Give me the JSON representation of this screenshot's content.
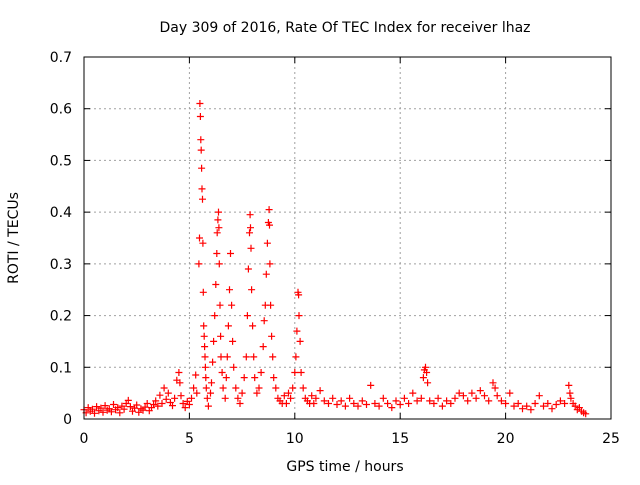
{
  "chart_data": {
    "type": "scatter",
    "title": "Day 309 of 2016, Rate Of TEC Index for receiver lhaz",
    "xlabel": "GPS time / hours",
    "ylabel": "ROTI / TECUs",
    "xlim": [
      0,
      25
    ],
    "ylim": [
      0,
      0.7
    ],
    "xticks": [
      0,
      5,
      10,
      15,
      20,
      25
    ],
    "xtick_labels": [
      "0",
      "5",
      "10",
      "15",
      "20",
      "25"
    ],
    "yticks": [
      0,
      0.1,
      0.2,
      0.3,
      0.4,
      0.5,
      0.6,
      0.7
    ],
    "ytick_labels": [
      "0",
      "0.1",
      "0.2",
      "0.3",
      "0.4",
      "0.5",
      "0.6",
      "0.7"
    ],
    "grid": true,
    "marker": "plus",
    "color": "#ff0000",
    "series": [
      {
        "points": [
          [
            0.0,
            0.018
          ],
          [
            0.1,
            0.012
          ],
          [
            0.2,
            0.022
          ],
          [
            0.3,
            0.015
          ],
          [
            0.4,
            0.019
          ],
          [
            0.5,
            0.011
          ],
          [
            0.6,
            0.024
          ],
          [
            0.7,
            0.016
          ],
          [
            0.8,
            0.021
          ],
          [
            0.9,
            0.013
          ],
          [
            1.0,
            0.026
          ],
          [
            1.1,
            0.017
          ],
          [
            1.2,
            0.02
          ],
          [
            1.3,
            0.014
          ],
          [
            1.4,
            0.028
          ],
          [
            1.5,
            0.018
          ],
          [
            1.6,
            0.022
          ],
          [
            1.7,
            0.012
          ],
          [
            1.8,
            0.025
          ],
          [
            1.9,
            0.019
          ],
          [
            2.0,
            0.03
          ],
          [
            2.1,
            0.036
          ],
          [
            2.2,
            0.024
          ],
          [
            2.3,
            0.015
          ],
          [
            2.4,
            0.021
          ],
          [
            2.5,
            0.027
          ],
          [
            2.6,
            0.013
          ],
          [
            2.7,
            0.02
          ],
          [
            2.8,
            0.017
          ],
          [
            2.9,
            0.023
          ],
          [
            3.0,
            0.03
          ],
          [
            3.1,
            0.016
          ],
          [
            3.2,
            0.022
          ],
          [
            3.3,
            0.028
          ],
          [
            3.4,
            0.035
          ],
          [
            3.5,
            0.025
          ],
          [
            3.6,
            0.046
          ],
          [
            3.7,
            0.03
          ],
          [
            3.8,
            0.06
          ],
          [
            3.9,
            0.038
          ],
          [
            4.0,
            0.05
          ],
          [
            4.1,
            0.032
          ],
          [
            4.2,
            0.026
          ],
          [
            4.3,
            0.04
          ],
          [
            4.4,
            0.075
          ],
          [
            4.5,
            0.09
          ],
          [
            4.55,
            0.07
          ],
          [
            4.6,
            0.045
          ],
          [
            4.7,
            0.03
          ],
          [
            4.8,
            0.022
          ],
          [
            4.9,
            0.034
          ],
          [
            5.0,
            0.028
          ],
          [
            5.1,
            0.04
          ],
          [
            5.2,
            0.06
          ],
          [
            5.3,
            0.085
          ],
          [
            5.35,
            0.05
          ],
          [
            5.45,
            0.3
          ],
          [
            5.48,
            0.35
          ],
          [
            5.5,
            0.61
          ],
          [
            5.52,
            0.585
          ],
          [
            5.54,
            0.54
          ],
          [
            5.56,
            0.52
          ],
          [
            5.58,
            0.485
          ],
          [
            5.6,
            0.445
          ],
          [
            5.62,
            0.425
          ],
          [
            5.64,
            0.34
          ],
          [
            5.66,
            0.245
          ],
          [
            5.68,
            0.18
          ],
          [
            5.7,
            0.16
          ],
          [
            5.72,
            0.14
          ],
          [
            5.74,
            0.12
          ],
          [
            5.76,
            0.1
          ],
          [
            5.78,
            0.08
          ],
          [
            5.8,
            0.06
          ],
          [
            5.85,
            0.04
          ],
          [
            5.9,
            0.025
          ],
          [
            6.0,
            0.05
          ],
          [
            6.05,
            0.07
          ],
          [
            6.1,
            0.11
          ],
          [
            6.15,
            0.15
          ],
          [
            6.2,
            0.2
          ],
          [
            6.25,
            0.26
          ],
          [
            6.3,
            0.32
          ],
          [
            6.32,
            0.36
          ],
          [
            6.35,
            0.385
          ],
          [
            6.38,
            0.4
          ],
          [
            6.4,
            0.37
          ],
          [
            6.42,
            0.3
          ],
          [
            6.45,
            0.22
          ],
          [
            6.48,
            0.16
          ],
          [
            6.5,
            0.12
          ],
          [
            6.55,
            0.09
          ],
          [
            6.6,
            0.06
          ],
          [
            6.7,
            0.04
          ],
          [
            6.75,
            0.08
          ],
          [
            6.8,
            0.12
          ],
          [
            6.85,
            0.18
          ],
          [
            6.9,
            0.25
          ],
          [
            6.95,
            0.32
          ],
          [
            7.0,
            0.22
          ],
          [
            7.05,
            0.15
          ],
          [
            7.1,
            0.1
          ],
          [
            7.2,
            0.06
          ],
          [
            7.3,
            0.04
          ],
          [
            7.4,
            0.03
          ],
          [
            7.5,
            0.05
          ],
          [
            7.6,
            0.08
          ],
          [
            7.7,
            0.12
          ],
          [
            7.75,
            0.2
          ],
          [
            7.8,
            0.29
          ],
          [
            7.85,
            0.36
          ],
          [
            7.88,
            0.395
          ],
          [
            7.9,
            0.37
          ],
          [
            7.92,
            0.33
          ],
          [
            7.95,
            0.25
          ],
          [
            8.0,
            0.18
          ],
          [
            8.05,
            0.12
          ],
          [
            8.1,
            0.08
          ],
          [
            8.2,
            0.05
          ],
          [
            8.3,
            0.06
          ],
          [
            8.4,
            0.09
          ],
          [
            8.5,
            0.14
          ],
          [
            8.55,
            0.19
          ],
          [
            8.6,
            0.22
          ],
          [
            8.65,
            0.28
          ],
          [
            8.7,
            0.34
          ],
          [
            8.75,
            0.38
          ],
          [
            8.78,
            0.405
          ],
          [
            8.8,
            0.375
          ],
          [
            8.82,
            0.3
          ],
          [
            8.85,
            0.22
          ],
          [
            8.9,
            0.16
          ],
          [
            8.95,
            0.12
          ],
          [
            9.0,
            0.08
          ],
          [
            9.1,
            0.06
          ],
          [
            9.2,
            0.04
          ],
          [
            9.3,
            0.035
          ],
          [
            9.4,
            0.03
          ],
          [
            9.5,
            0.045
          ],
          [
            9.6,
            0.03
          ],
          [
            9.7,
            0.05
          ],
          [
            9.8,
            0.04
          ],
          [
            9.9,
            0.06
          ],
          [
            10.0,
            0.09
          ],
          [
            10.05,
            0.12
          ],
          [
            10.1,
            0.17
          ],
          [
            10.15,
            0.245
          ],
          [
            10.18,
            0.24
          ],
          [
            10.2,
            0.2
          ],
          [
            10.25,
            0.15
          ],
          [
            10.3,
            0.09
          ],
          [
            10.4,
            0.06
          ],
          [
            10.5,
            0.04
          ],
          [
            10.6,
            0.035
          ],
          [
            10.7,
            0.03
          ],
          [
            10.8,
            0.045
          ],
          [
            10.9,
            0.03
          ],
          [
            11.0,
            0.04
          ],
          [
            11.2,
            0.055
          ],
          [
            11.4,
            0.035
          ],
          [
            11.6,
            0.03
          ],
          [
            11.8,
            0.04
          ],
          [
            12.0,
            0.028
          ],
          [
            12.2,
            0.035
          ],
          [
            12.4,
            0.025
          ],
          [
            12.6,
            0.04
          ],
          [
            12.8,
            0.03
          ],
          [
            13.0,
            0.025
          ],
          [
            13.2,
            0.035
          ],
          [
            13.4,
            0.028
          ],
          [
            13.6,
            0.065
          ],
          [
            13.8,
            0.03
          ],
          [
            14.0,
            0.025
          ],
          [
            14.2,
            0.04
          ],
          [
            14.4,
            0.03
          ],
          [
            14.6,
            0.022
          ],
          [
            14.8,
            0.035
          ],
          [
            15.0,
            0.028
          ],
          [
            15.2,
            0.04
          ],
          [
            15.4,
            0.03
          ],
          [
            15.6,
            0.05
          ],
          [
            15.8,
            0.035
          ],
          [
            16.0,
            0.04
          ],
          [
            16.1,
            0.08
          ],
          [
            16.15,
            0.095
          ],
          [
            16.2,
            0.1
          ],
          [
            16.25,
            0.09
          ],
          [
            16.3,
            0.07
          ],
          [
            16.4,
            0.035
          ],
          [
            16.6,
            0.03
          ],
          [
            16.8,
            0.04
          ],
          [
            17.0,
            0.025
          ],
          [
            17.2,
            0.035
          ],
          [
            17.4,
            0.03
          ],
          [
            17.6,
            0.04
          ],
          [
            17.8,
            0.05
          ],
          [
            18.0,
            0.045
          ],
          [
            18.2,
            0.035
          ],
          [
            18.4,
            0.05
          ],
          [
            18.6,
            0.04
          ],
          [
            18.8,
            0.055
          ],
          [
            19.0,
            0.045
          ],
          [
            19.2,
            0.035
          ],
          [
            19.4,
            0.07
          ],
          [
            19.5,
            0.06
          ],
          [
            19.6,
            0.045
          ],
          [
            19.8,
            0.035
          ],
          [
            20.0,
            0.03
          ],
          [
            20.2,
            0.05
          ],
          [
            20.4,
            0.025
          ],
          [
            20.6,
            0.03
          ],
          [
            20.8,
            0.02
          ],
          [
            21.0,
            0.025
          ],
          [
            21.2,
            0.018
          ],
          [
            21.4,
            0.03
          ],
          [
            21.6,
            0.045
          ],
          [
            21.8,
            0.025
          ],
          [
            22.0,
            0.03
          ],
          [
            22.2,
            0.02
          ],
          [
            22.4,
            0.028
          ],
          [
            22.6,
            0.035
          ],
          [
            22.8,
            0.03
          ],
          [
            23.0,
            0.065
          ],
          [
            23.05,
            0.05
          ],
          [
            23.1,
            0.04
          ],
          [
            23.2,
            0.03
          ],
          [
            23.3,
            0.025
          ],
          [
            23.4,
            0.018
          ],
          [
            23.5,
            0.022
          ],
          [
            23.6,
            0.015
          ],
          [
            23.7,
            0.012
          ],
          [
            23.8,
            0.01
          ]
        ]
      }
    ]
  }
}
